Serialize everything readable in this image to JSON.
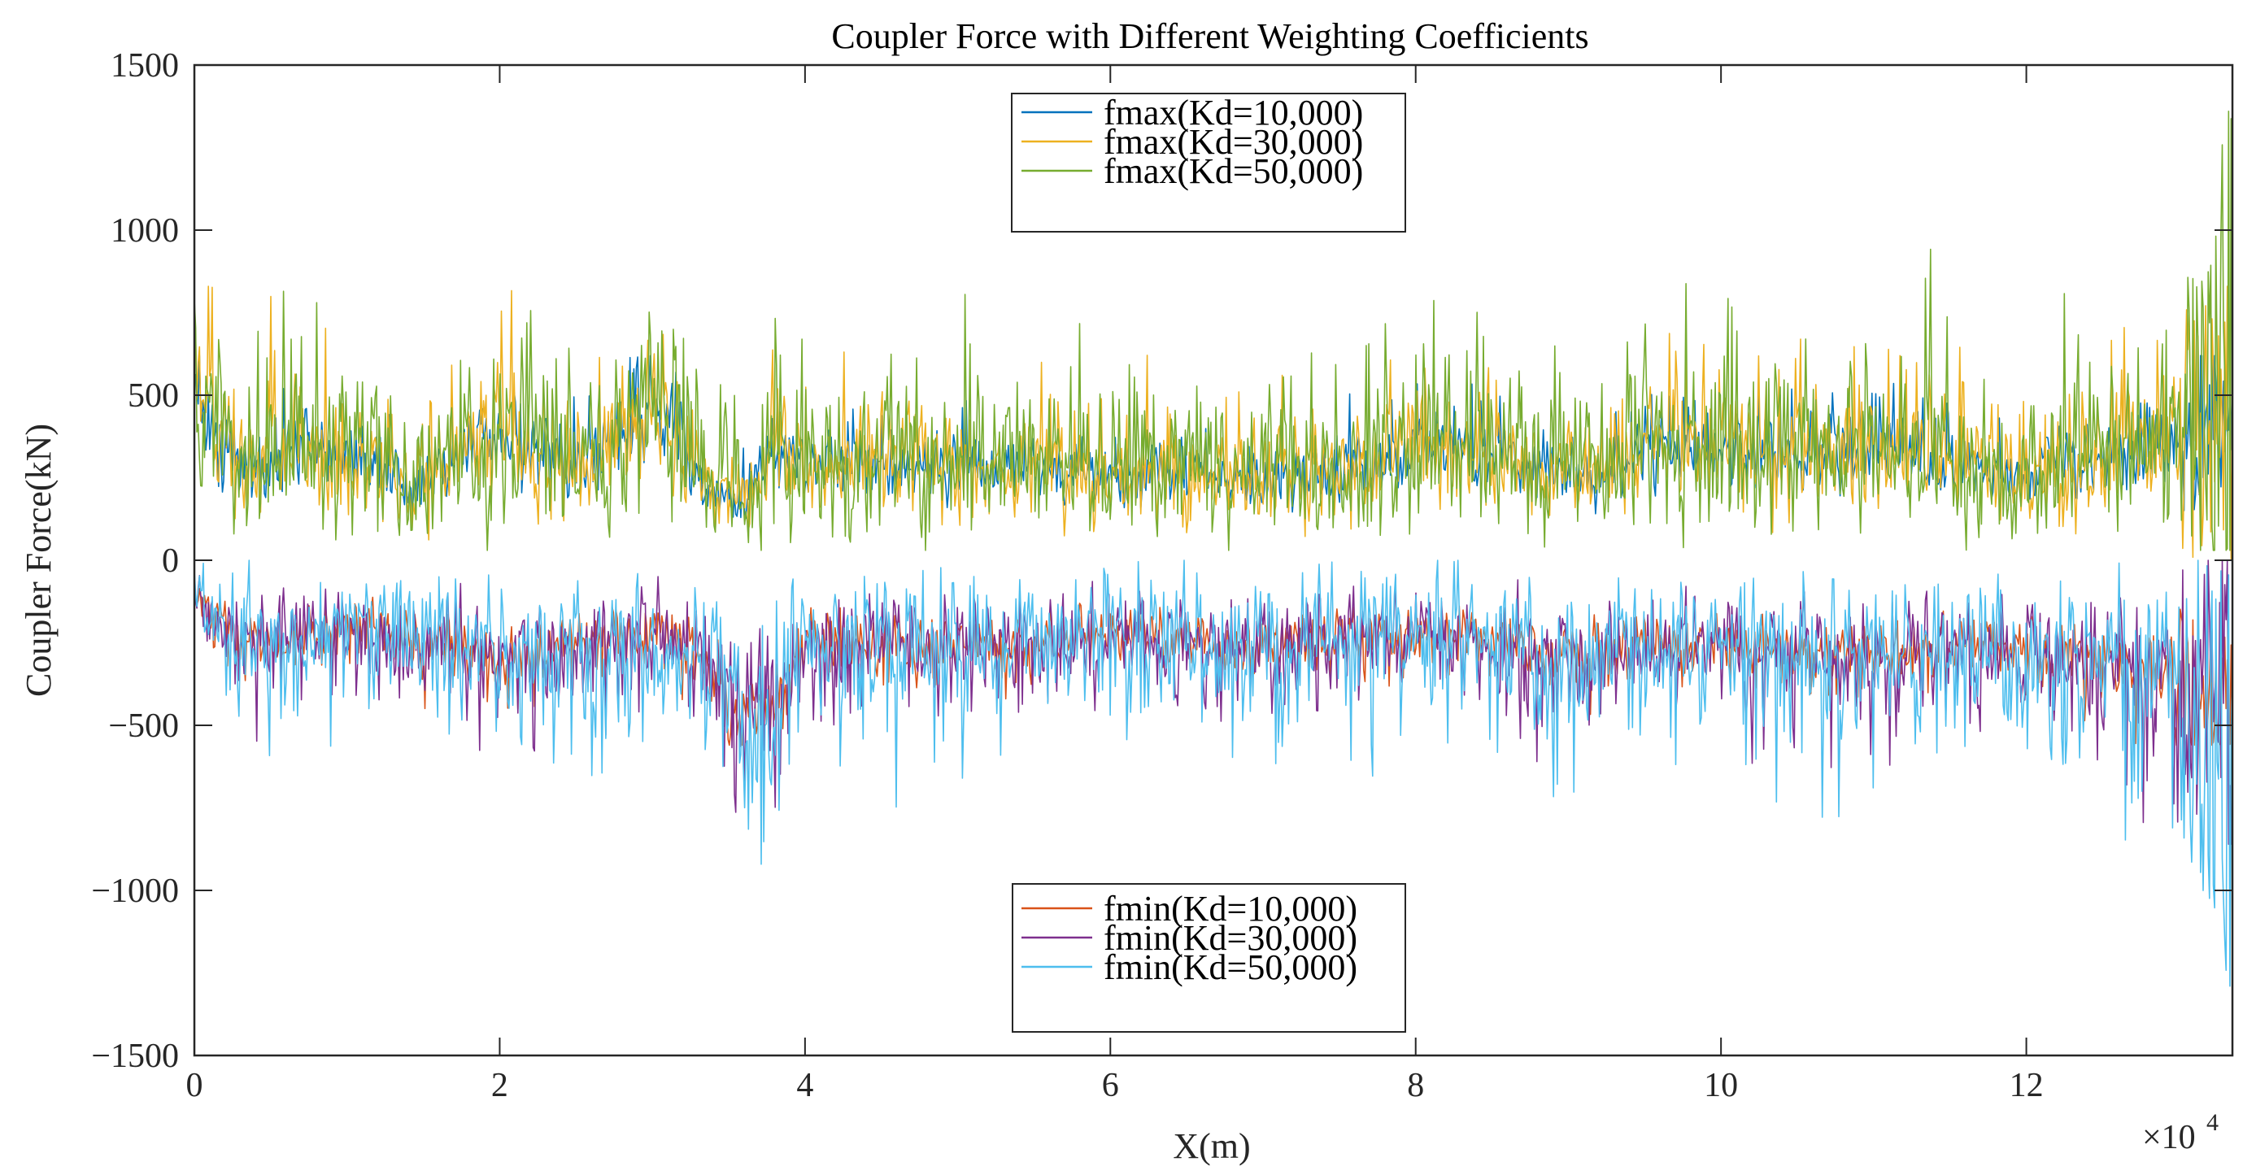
{
  "chart_data": {
    "type": "line",
    "title": "Coupler Force with Different Weighting Coefficients",
    "xlabel": "X(m)",
    "ylabel": "Coupler Force(kN)",
    "x_exponent_label": "×10",
    "x_exponent_power": "4",
    "xlim": [
      0,
      13.35
    ],
    "ylim": [
      -1500,
      1500
    ],
    "x_units_note": "x in units of 10^4 m",
    "xticks": [
      0,
      2,
      4,
      6,
      8,
      10,
      12
    ],
    "xtick_labels": [
      "0",
      "2",
      "4",
      "6",
      "8",
      "10",
      "12"
    ],
    "yticks": [
      1500,
      1000,
      500,
      0,
      -500,
      -1000,
      -1500
    ],
    "ytick_labels": [
      "1500",
      "1000",
      "500",
      "0",
      "−500",
      "−1000",
      "−1500"
    ],
    "grid": false,
    "legends": [
      {
        "placement": "top-center",
        "entries": [
          "fmax(Kd=10,000)",
          "fmax(Kd=30,000)",
          "fmax(Kd=50,000)"
        ]
      },
      {
        "placement": "bottom-center",
        "entries": [
          "fmin(Kd=10,000)",
          "fmin(Kd=30,000)",
          "fmin(Kd=50,000)"
        ]
      }
    ],
    "series": [
      {
        "name": "fmax(Kd=10,000)",
        "color": "#0072BD",
        "approx_mean": 280,
        "envelope": [
          0,
          620
        ]
      },
      {
        "name": "fmax(Kd=30,000)",
        "color": "#EDB120",
        "approx_mean": 330,
        "envelope": [
          0,
          830
        ]
      },
      {
        "name": "fmax(Kd=50,000)",
        "color": "#77AC30",
        "approx_mean": 360,
        "envelope": [
          30,
          1360
        ]
      },
      {
        "name": "fmin(Kd=10,000)",
        "color": "#D95319",
        "approx_mean": -230,
        "envelope": [
          -560,
          0
        ]
      },
      {
        "name": "fmin(Kd=30,000)",
        "color": "#7E2F8E",
        "approx_mean": -280,
        "envelope": [
          -860,
          0
        ]
      },
      {
        "name": "fmin(Kd=50,000)",
        "color": "#4DBEEE",
        "approx_mean": -320,
        "envelope": [
          -1290,
          0
        ]
      }
    ],
    "profile_x": [
      0,
      0.3,
      0.6,
      1.0,
      1.4,
      1.8,
      2.0,
      2.4,
      2.8,
      3.0,
      3.4,
      3.6,
      3.8,
      4.0,
      4.4,
      4.8,
      5.2,
      5.6,
      6.0,
      6.4,
      6.8,
      7.2,
      7.6,
      8.0,
      8.4,
      8.8,
      9.2,
      9.6,
      10.0,
      10.4,
      10.8,
      11.2,
      11.6,
      12.0,
      12.4,
      12.8,
      13.2,
      13.35
    ],
    "fmax_profile": [
      480,
      260,
      330,
      310,
      220,
      320,
      380,
      300,
      330,
      470,
      200,
      170,
      330,
      250,
      300,
      270,
      290,
      260,
      250,
      270,
      230,
      250,
      270,
      330,
      320,
      290,
      260,
      330,
      320,
      310,
      330,
      320,
      270,
      250,
      300,
      310,
      420,
      650
    ],
    "fmin_profile": [
      -110,
      -230,
      -230,
      -190,
      -230,
      -250,
      -280,
      -260,
      -240,
      -200,
      -300,
      -460,
      -400,
      -230,
      -240,
      -260,
      -250,
      -240,
      -220,
      -230,
      -250,
      -240,
      -220,
      -210,
      -230,
      -260,
      -280,
      -260,
      -250,
      -260,
      -280,
      -270,
      -250,
      -270,
      -300,
      -320,
      -420,
      -600
    ]
  }
}
